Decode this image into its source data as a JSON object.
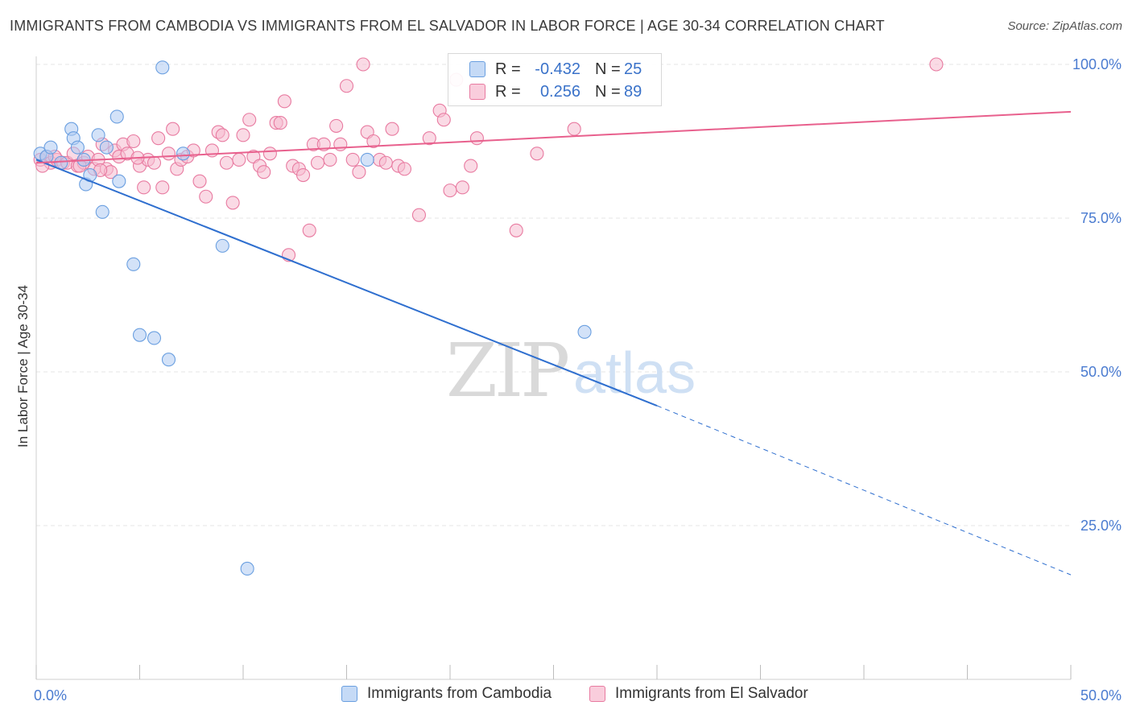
{
  "chart_data": {
    "type": "scatter",
    "title": "IMMIGRANTS FROM CAMBODIA VS IMMIGRANTS FROM EL SALVADOR IN LABOR FORCE | AGE 30-34 CORRELATION CHART",
    "source": "Source: ZipAtlas.com",
    "ylabel": "In Labor Force | Age 30-34",
    "xlabel": "",
    "xlim": [
      0,
      50
    ],
    "ylim": [
      0,
      102
    ],
    "x_tick_labels": [
      {
        "value": 0,
        "label": "0.0%"
      },
      {
        "value": 50,
        "label": "50.0%"
      }
    ],
    "y_tick_labels": [
      {
        "value": 25,
        "label": "25.0%"
      },
      {
        "value": 50,
        "label": "50.0%"
      },
      {
        "value": 75,
        "label": "75.0%"
      },
      {
        "value": 100,
        "label": "100.0%"
      }
    ],
    "watermark": {
      "part1": "ZIP",
      "part2": "atlas"
    },
    "legend": {
      "r_label": "R =",
      "n_label": "N =",
      "entries": [
        {
          "name": "Immigrants from Cambodia",
          "r": "-0.432",
          "n": "25"
        },
        {
          "name": "Immigrants from El Salvador",
          "r": "0.256",
          "n": "89"
        }
      ]
    },
    "series": [
      {
        "name": "Immigrants from Cambodia",
        "color": "#6a9fe0",
        "fill": "#aecbf2",
        "trend": {
          "x0": 0,
          "y0": 84.5,
          "x1": 30,
          "y1": 44.5,
          "dash_to_x": 50,
          "dash_to_y": 17
        },
        "points": [
          [
            0.2,
            85.5
          ],
          [
            0.5,
            85
          ],
          [
            0.7,
            86.5
          ],
          [
            1.2,
            84
          ],
          [
            1.7,
            89.5
          ],
          [
            1.8,
            88
          ],
          [
            2,
            86.5
          ],
          [
            2.3,
            84.5
          ],
          [
            2.4,
            80.5
          ],
          [
            2.6,
            82
          ],
          [
            3,
            88.5
          ],
          [
            3.2,
            76
          ],
          [
            3.4,
            86.5
          ],
          [
            3.9,
            91.5
          ],
          [
            4,
            81
          ],
          [
            4.7,
            67.5
          ],
          [
            5,
            56
          ],
          [
            5.7,
            55.5
          ],
          [
            6.1,
            99.5
          ],
          [
            6.4,
            52
          ],
          [
            7.1,
            85.5
          ],
          [
            9,
            70.5
          ],
          [
            10.2,
            18
          ],
          [
            16,
            84.5
          ],
          [
            26.5,
            56.5
          ]
        ]
      },
      {
        "name": "Immigrants from El Salvador",
        "color": "#e87aa0",
        "fill": "#f5bcd0",
        "trend": {
          "x0": 0,
          "y0": 84,
          "x1": 50,
          "y1": 92.3
        },
        "points": [
          [
            0.2,
            84.5
          ],
          [
            0.5,
            85
          ],
          [
            0.7,
            84
          ],
          [
            1,
            84.5
          ],
          [
            1.3,
            84
          ],
          [
            1.5,
            84
          ],
          [
            1.8,
            85.5
          ],
          [
            2,
            83.5
          ],
          [
            2.3,
            84
          ],
          [
            2.5,
            85
          ],
          [
            2.8,
            83
          ],
          [
            3,
            84.5
          ],
          [
            3.2,
            87
          ],
          [
            3.4,
            83
          ],
          [
            3.6,
            82.5
          ],
          [
            3.8,
            86
          ],
          [
            4,
            85
          ],
          [
            4.2,
            87
          ],
          [
            4.4,
            85.5
          ],
          [
            4.7,
            87.5
          ],
          [
            5,
            83.5
          ],
          [
            5.2,
            80
          ],
          [
            5.4,
            84.5
          ],
          [
            5.7,
            84
          ],
          [
            5.9,
            88
          ],
          [
            6.1,
            80
          ],
          [
            6.4,
            85.5
          ],
          [
            6.6,
            89.5
          ],
          [
            6.8,
            83
          ],
          [
            7,
            84.5
          ],
          [
            7.3,
            85
          ],
          [
            7.6,
            86
          ],
          [
            7.9,
            81
          ],
          [
            8.2,
            78.5
          ],
          [
            8.5,
            86
          ],
          [
            8.8,
            89
          ],
          [
            9,
            88.5
          ],
          [
            9.2,
            84
          ],
          [
            9.5,
            77.5
          ],
          [
            9.8,
            84.5
          ],
          [
            10,
            88.5
          ],
          [
            10.3,
            91
          ],
          [
            10.5,
            85
          ],
          [
            10.8,
            83.5
          ],
          [
            11,
            82.5
          ],
          [
            11.3,
            85.5
          ],
          [
            11.6,
            90.5
          ],
          [
            11.8,
            90.5
          ],
          [
            12,
            94
          ],
          [
            12.2,
            69
          ],
          [
            12.4,
            83.5
          ],
          [
            12.7,
            83
          ],
          [
            12.9,
            82
          ],
          [
            13.2,
            73
          ],
          [
            13.4,
            87
          ],
          [
            13.6,
            84
          ],
          [
            13.9,
            87
          ],
          [
            14.2,
            84.5
          ],
          [
            14.5,
            90
          ],
          [
            14.7,
            87
          ],
          [
            15,
            96.5
          ],
          [
            15.3,
            84.5
          ],
          [
            15.6,
            82.5
          ],
          [
            15.8,
            100
          ],
          [
            16,
            89
          ],
          [
            16.3,
            87.5
          ],
          [
            16.6,
            84.5
          ],
          [
            16.9,
            84
          ],
          [
            17.2,
            89.5
          ],
          [
            17.5,
            83.5
          ],
          [
            17.8,
            83
          ],
          [
            18.5,
            75.5
          ],
          [
            19,
            88
          ],
          [
            19.5,
            92.5
          ],
          [
            19.7,
            91
          ],
          [
            20,
            79.5
          ],
          [
            20.3,
            97.5
          ],
          [
            20.6,
            80
          ],
          [
            21,
            83.5
          ],
          [
            21.3,
            88
          ],
          [
            23.2,
            73
          ],
          [
            24.2,
            85.5
          ],
          [
            26,
            89.5
          ],
          [
            43.5,
            100
          ],
          [
            0.3,
            83.5
          ],
          [
            0.9,
            85
          ],
          [
            2.1,
            83.5
          ],
          [
            3.1,
            82.8
          ],
          [
            4.9,
            84.8
          ]
        ]
      }
    ]
  }
}
